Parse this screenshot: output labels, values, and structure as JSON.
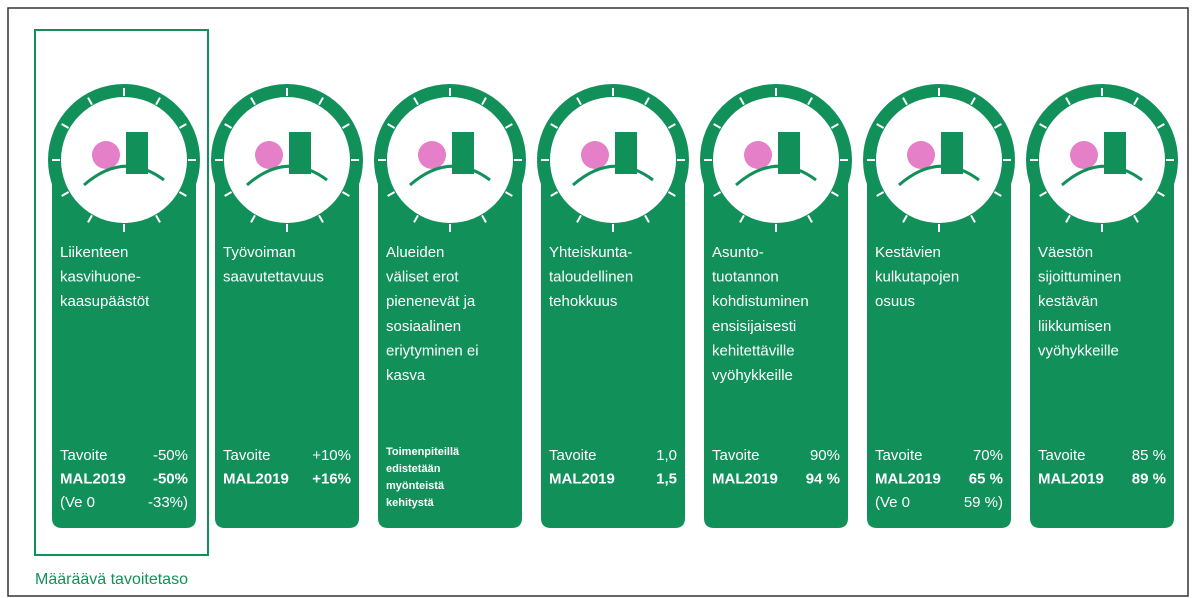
{
  "cards": [
    {
      "title": [
        "Liikenteen",
        "kasvihuone-",
        "kaasupäästöt"
      ],
      "rows": [
        [
          "Tavoite",
          "-50%"
        ],
        [
          "MAL2019",
          "-50%"
        ],
        [
          "(Ve 0",
          "-33%)"
        ]
      ]
    },
    {
      "title": [
        "Työvoiman",
        "saavutettavuus"
      ],
      "rows": [
        [
          "Tavoite",
          "+10%"
        ],
        [
          "MAL2019",
          "+16%"
        ]
      ]
    },
    {
      "title": [
        "Alueiden",
        "väliset erot",
        "pienenevät ja",
        "sosiaalinen",
        "eriytyminen ei",
        "kasva"
      ],
      "note": [
        "Toimenpiteillä",
        "edistetään",
        "myönteistä",
        "kehitystä"
      ]
    },
    {
      "title": [
        "Yhteiskunta-",
        "taloudellinen",
        "tehokkuus"
      ],
      "rows": [
        [
          "Tavoite",
          "1,0"
        ],
        [
          "MAL2019",
          "1,5"
        ]
      ]
    },
    {
      "title": [
        "Asunto-",
        "tuotannon",
        "kohdistuminen",
        "ensisijaisesti",
        "kehitettäville",
        "vyöhykkeille"
      ],
      "rows": [
        [
          "Tavoite",
          "90%"
        ],
        [
          "MAL2019",
          "94 %"
        ]
      ]
    },
    {
      "title": [
        "Kestävien",
        "kulkutapojen",
        "osuus"
      ],
      "rows": [
        [
          "Tavoite",
          "70%"
        ],
        [
          "MAL2019",
          "65 %"
        ],
        [
          "(Ve 0",
          "59 %)"
        ]
      ]
    },
    {
      "title": [
        "Väestön",
        "sijoittuminen",
        "kestävän",
        "liikkumisen",
        "vyöhykkeille"
      ],
      "rows": [
        [
          "Tavoite",
          "85 %"
        ],
        [
          "MAL2019",
          "89 %"
        ]
      ]
    }
  ],
  "legend": "Määräävä tavoitetaso"
}
